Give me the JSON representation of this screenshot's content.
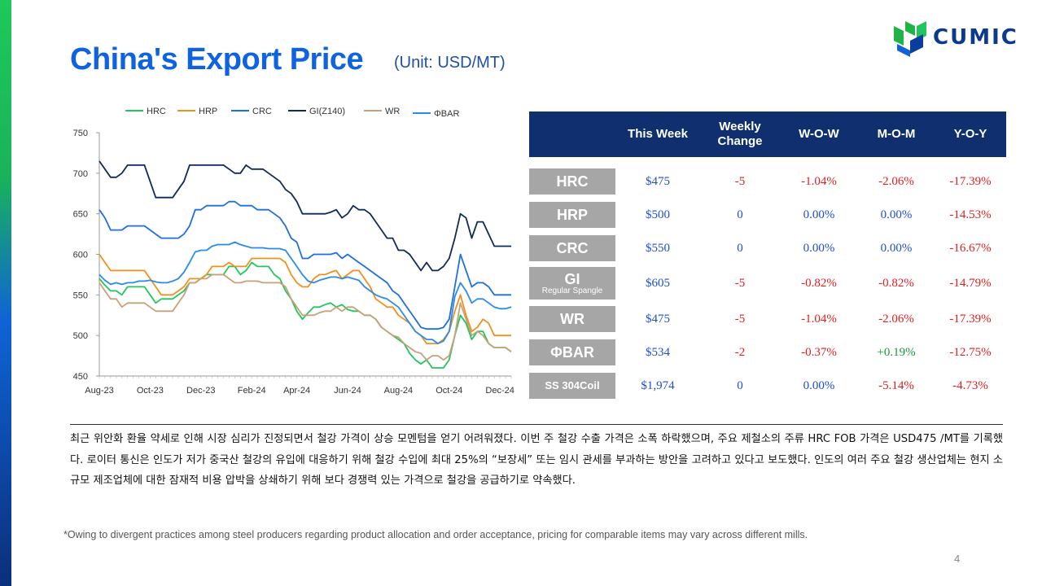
{
  "header": {
    "title": "China's Export Price",
    "unit": "(Unit: USD/MT)",
    "logo_text": "CUMIC"
  },
  "colors": {
    "title": "#0f63e0",
    "table_header_bg": "#0f2f6e",
    "row_label_bg": "#a6a6a6",
    "value_blue": "#1f4fd0",
    "value_red": "#e02020",
    "value_green": "#1a9a3a",
    "HRC": "#22c55e",
    "HRP": "#f0901e",
    "CRC": "#1f6fe0",
    "GI": "#0f2a5c",
    "WR": "#c8a07a",
    "PHIBAR": "#2b8be8"
  },
  "chart_data": {
    "type": "line",
    "title": "",
    "xlabel": "",
    "ylabel": "",
    "ylim": [
      450,
      750
    ],
    "yticks": [
      450,
      500,
      550,
      600,
      650,
      700,
      750
    ],
    "xtick_labels": [
      "Aug-23",
      "Oct-23",
      "Dec-23",
      "Feb-24",
      "Apr-24",
      "Jun-24",
      "Aug-24",
      "Oct-24",
      "Dec-24"
    ],
    "xtick_index": [
      0,
      9,
      18,
      27,
      35,
      44,
      53,
      62,
      71
    ],
    "grid": false,
    "legend_placement": "top",
    "series": [
      {
        "name": "HRC",
        "color": "#22c55e",
        "values": [
          570,
          562,
          555,
          555,
          550,
          560,
          560,
          560,
          560,
          550,
          540,
          545,
          545,
          545,
          550,
          555,
          565,
          565,
          570,
          575,
          575,
          575,
          575,
          585,
          585,
          575,
          580,
          590,
          585,
          585,
          585,
          575,
          570,
          555,
          545,
          530,
          520,
          528,
          535,
          535,
          538,
          540,
          535,
          538,
          532,
          530,
          530,
          525,
          525,
          520,
          510,
          505,
          500,
          495,
          490,
          478,
          470,
          465,
          470,
          460,
          460,
          460,
          470,
          500,
          525,
          515,
          495,
          505,
          505,
          490,
          485,
          485,
          485,
          480
        ]
      },
      {
        "name": "HRP",
        "color": "#f0901e",
        "values": [
          600,
          590,
          580,
          580,
          580,
          580,
          580,
          580,
          580,
          570,
          560,
          550,
          550,
          550,
          555,
          560,
          570,
          570,
          570,
          575,
          585,
          585,
          585,
          590,
          585,
          585,
          585,
          595,
          595,
          595,
          595,
          595,
          595,
          590,
          575,
          565,
          560,
          560,
          570,
          575,
          575,
          578,
          580,
          570,
          575,
          580,
          580,
          570,
          560,
          545,
          540,
          535,
          535,
          525,
          520,
          515,
          505,
          500,
          490,
          490,
          490,
          495,
          505,
          530,
          550,
          525,
          505,
          510,
          520,
          515,
          500,
          500,
          500,
          500
        ]
      },
      {
        "name": "CRC",
        "color": "#1f6fe0",
        "values": [
          655,
          645,
          630,
          630,
          630,
          635,
          635,
          635,
          635,
          630,
          625,
          620,
          620,
          620,
          620,
          625,
          635,
          655,
          655,
          660,
          660,
          660,
          660,
          665,
          665,
          660,
          660,
          660,
          655,
          655,
          655,
          650,
          645,
          635,
          620,
          615,
          595,
          595,
          600,
          600,
          600,
          600,
          602,
          595,
          600,
          595,
          590,
          585,
          580,
          575,
          570,
          565,
          555,
          550,
          540,
          530,
          520,
          510,
          508,
          508,
          508,
          510,
          520,
          560,
          600,
          580,
          560,
          565,
          565,
          560,
          550,
          550,
          550,
          550
        ]
      },
      {
        "name": "GI(Z140)",
        "color": "#0f2a5c",
        "values": [
          715,
          705,
          695,
          695,
          700,
          710,
          710,
          710,
          710,
          690,
          670,
          670,
          670,
          670,
          680,
          690,
          710,
          710,
          710,
          710,
          710,
          710,
          710,
          705,
          700,
          700,
          710,
          705,
          705,
          705,
          700,
          695,
          690,
          680,
          675,
          665,
          650,
          650,
          650,
          650,
          650,
          652,
          655,
          645,
          650,
          660,
          655,
          655,
          650,
          640,
          630,
          620,
          620,
          605,
          605,
          600,
          590,
          580,
          590,
          580,
          580,
          585,
          595,
          620,
          650,
          645,
          620,
          640,
          640,
          625,
          610,
          610,
          610,
          610
        ]
      },
      {
        "name": "WR",
        "color": "#c8a07a",
        "values": [
          565,
          555,
          545,
          545,
          535,
          540,
          540,
          540,
          540,
          535,
          530,
          530,
          530,
          530,
          540,
          550,
          565,
          565,
          570,
          570,
          575,
          575,
          575,
          570,
          565,
          565,
          567,
          567,
          567,
          565,
          565,
          565,
          565,
          560,
          545,
          535,
          525,
          525,
          525,
          528,
          530,
          530,
          535,
          530,
          535,
          535,
          530,
          525,
          525,
          520,
          510,
          505,
          500,
          498,
          490,
          485,
          480,
          478,
          470,
          475,
          475,
          470,
          475,
          500,
          540,
          520,
          500,
          505,
          500,
          490,
          485,
          485,
          485,
          480
        ]
      },
      {
        "name": "ΦBAR",
        "color": "#2b8be8",
        "values": [
          575,
          568,
          563,
          565,
          563,
          565,
          565,
          567,
          567,
          568,
          566,
          565,
          565,
          567,
          570,
          578,
          590,
          603,
          605,
          605,
          610,
          612,
          612,
          612,
          615,
          612,
          610,
          608,
          608,
          608,
          607,
          607,
          607,
          605,
          595,
          585,
          575,
          567,
          565,
          568,
          570,
          572,
          572,
          570,
          572,
          570,
          568,
          560,
          555,
          550,
          547,
          545,
          540,
          535,
          525,
          515,
          505,
          500,
          495,
          495,
          490,
          493,
          505,
          548,
          565,
          555,
          540,
          545,
          545,
          540,
          535,
          533,
          533,
          535
        ]
      }
    ]
  },
  "table": {
    "headers": [
      "",
      "This Week",
      "Weekly Change",
      "W-O-W",
      "M-O-M",
      "Y-O-Y"
    ],
    "rows": [
      {
        "label": "HRC",
        "sub": "",
        "this_week": "$475",
        "weekly_change": "-5",
        "wow": "-1.04%",
        "mom": "-2.06%",
        "yoy": "-17.39%",
        "colors": [
          "blue",
          "red",
          "red",
          "red",
          "red"
        ]
      },
      {
        "label": "HRP",
        "sub": "",
        "this_week": "$500",
        "weekly_change": "0",
        "wow": "0.00%",
        "mom": "0.00%",
        "yoy": "-14.53%",
        "colors": [
          "blue",
          "blue",
          "blue",
          "blue",
          "red"
        ]
      },
      {
        "label": "CRC",
        "sub": "",
        "this_week": "$550",
        "weekly_change": "0",
        "wow": "0.00%",
        "mom": "0.00%",
        "yoy": "-16.67%",
        "colors": [
          "blue",
          "blue",
          "blue",
          "blue",
          "red"
        ]
      },
      {
        "label": "GI",
        "sub": "Regular Spangle",
        "this_week": "$605",
        "weekly_change": "-5",
        "wow": "-0.82%",
        "mom": "-0.82%",
        "yoy": "-14.79%",
        "colors": [
          "blue",
          "red",
          "red",
          "red",
          "red"
        ]
      },
      {
        "label": "WR",
        "sub": "",
        "this_week": "$475",
        "weekly_change": "-5",
        "wow": "-1.04%",
        "mom": "-2.06%",
        "yoy": "-17.39%",
        "colors": [
          "blue",
          "red",
          "red",
          "red",
          "red"
        ]
      },
      {
        "label": "ΦBAR",
        "sub": "",
        "this_week": "$534",
        "weekly_change": "-2",
        "wow": "-0.37%",
        "mom": "+0.19%",
        "yoy": "-12.75%",
        "colors": [
          "blue",
          "red",
          "red",
          "green",
          "red"
        ]
      },
      {
        "label": "SS 304Coil",
        "sub": "",
        "this_week": "$1,974",
        "weekly_change": "0",
        "wow": "0.00%",
        "mom": "-5.14%",
        "yoy": "-4.73%",
        "colors": [
          "blue",
          "blue",
          "blue",
          "red",
          "red"
        ]
      }
    ]
  },
  "body": {
    "paragraph": "최근 위안화 환율 약세로 인해 시장 심리가 진정되면서 철강 가격이 상승 모멘텀을 얻기 어려워졌다. 이번 주 철강 수출 가격은 소폭 하락했으며, 주요 제철소의 주류 HRC FOB 가격은 USD475 /MT를 기록했다. 로이터 통신은 인도가 저가 중국산 철강의 유입에 대응하기 위해 철강 수입에 최대 25%의 “보장세” 또는 임시 관세를 부과하는 방안을 고려하고 있다고 보도했다. 인도의 여러 주요 철강 생산업체는 현지 소규모 제조업체에 대한 잠재적 비용 압박을 상쇄하기 위해 보다 경쟁력 있는 가격으로 철강을 공급하기로 약속했다.",
    "footnote": "*Owing to divergent practices among steel producers regarding product allocation and order acceptance, pricing for comparable items may vary across different mills.",
    "page_number": "4"
  }
}
